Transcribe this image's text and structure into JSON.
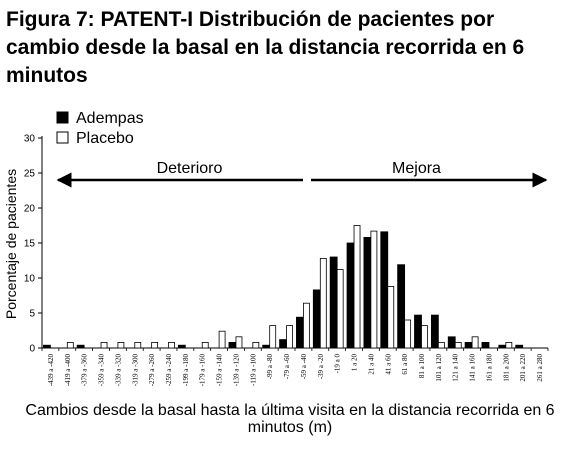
{
  "title": "Figura 7: PATENT-I Distribución de pacientes por cambio desde la basal en la distancia recorrida en 6 minutos",
  "chart_data": {
    "type": "bar",
    "title": "Figura 7: PATENT-I Distribución de pacientes por cambio desde la basal en la distancia recorrida en 6 minutos",
    "xlabel": "Cambios desde la basal hasta la última visita en la distancia recorrida en 6 minutos (m)",
    "ylabel": "Porcentaje de pacientes",
    "ylim": [
      0,
      30
    ],
    "yticks": [
      0,
      5,
      10,
      15,
      20,
      25,
      30
    ],
    "legend_position": "top-left",
    "categories": [
      "-439 a -420",
      "-419 a -400",
      "-379 a -360",
      "-359 a -340",
      "-339 a -320",
      "-319 a -300",
      "-279 a -260",
      "-259 a -240",
      "-199 a -180",
      "-179 a -160",
      "-159 a -140",
      "-139 a -120",
      "-119 a -100",
      "-99 a -80",
      "-79 a -60",
      "-59 a -40",
      "-39 a -20",
      "-19 a 0",
      "1 a 20",
      "21 a 40",
      "41 a 60",
      "61 a 80",
      "81 a 100",
      "101 a 120",
      "121 a 140",
      "141 a 160",
      "161 a 180",
      "181 a 200",
      "201 a 220",
      "261 a 280"
    ],
    "series": [
      {
        "name": "Adempas",
        "color": "#000000",
        "values": [
          0.4,
          0,
          0.4,
          0,
          0,
          0,
          0,
          0,
          0.4,
          0,
          0,
          0.8,
          0,
          0.4,
          1.2,
          4.4,
          8.3,
          13.0,
          15.0,
          15.8,
          16.6,
          11.9,
          4.7,
          4.7,
          1.6,
          0.8,
          0.8,
          0.4,
          0.4,
          0
        ]
      },
      {
        "name": "Placebo",
        "color": "#ffffff",
        "values": [
          0,
          0.8,
          0,
          0.8,
          0.8,
          0.8,
          0.8,
          0.8,
          0,
          0.8,
          2.4,
          1.6,
          0.8,
          3.2,
          3.2,
          6.4,
          12.8,
          11.2,
          17.5,
          16.7,
          8.8,
          4.0,
          3.2,
          0.8,
          0.8,
          1.6,
          0,
          0.8,
          0,
          0
        ]
      }
    ],
    "annotations": [
      {
        "text": "Deterioro",
        "arrow": "left"
      },
      {
        "text": "Mejora",
        "arrow": "right"
      }
    ]
  }
}
